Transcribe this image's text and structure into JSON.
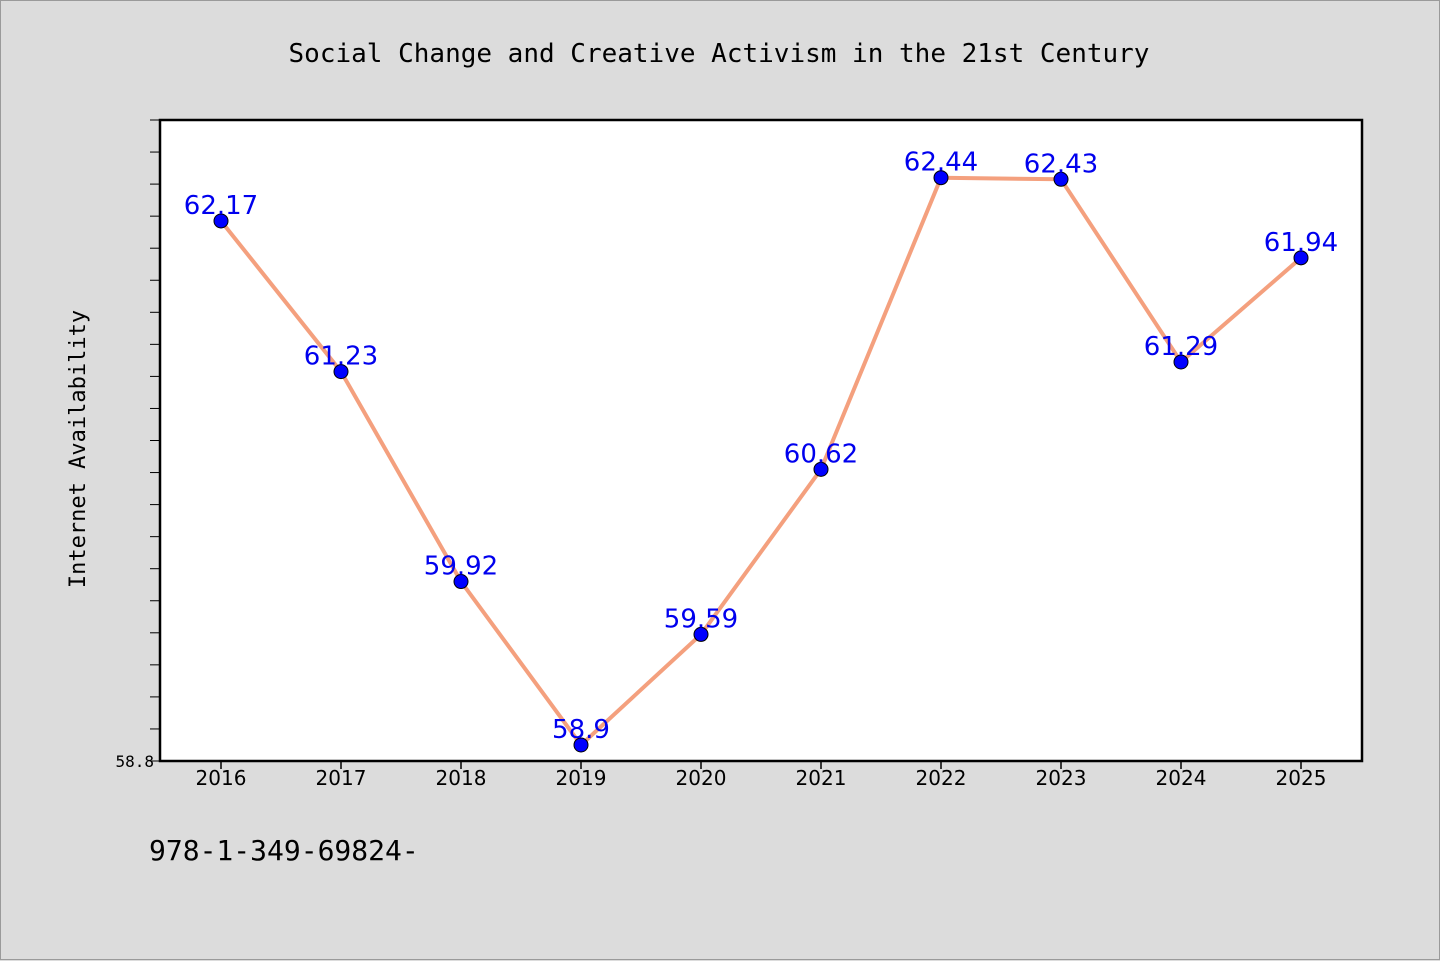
{
  "chart_data": {
    "type": "line",
    "title": "Social Change and Creative Activism in the 21st Century",
    "xlabel": "",
    "ylabel": "Internet Availability",
    "categories": [
      "2016",
      "2017",
      "2018",
      "2019",
      "2020",
      "2021",
      "2022",
      "2023",
      "2024",
      "2025"
    ],
    "series": [
      {
        "values": [
          62.17,
          61.23,
          59.92,
          58.9,
          59.59,
          60.62,
          62.44,
          62.43,
          61.29,
          61.94
        ]
      }
    ],
    "data_labels": [
      "62.17",
      "61.23",
      "59.92",
      "58.9",
      "59.59",
      "60.62",
      "62.44",
      "62.43",
      "61.29",
      "61.94"
    ],
    "ytick_labels": [
      "58.8"
    ],
    "ylim": [
      58.8,
      62.8
    ],
    "grid": false,
    "colors": {
      "line": "#f4a07e",
      "marker": "#0000ff",
      "label": "#0000ee",
      "background": "#dcdcdc",
      "plot_background": "#ffffff"
    }
  },
  "footnote": "978-1-349-69824-"
}
